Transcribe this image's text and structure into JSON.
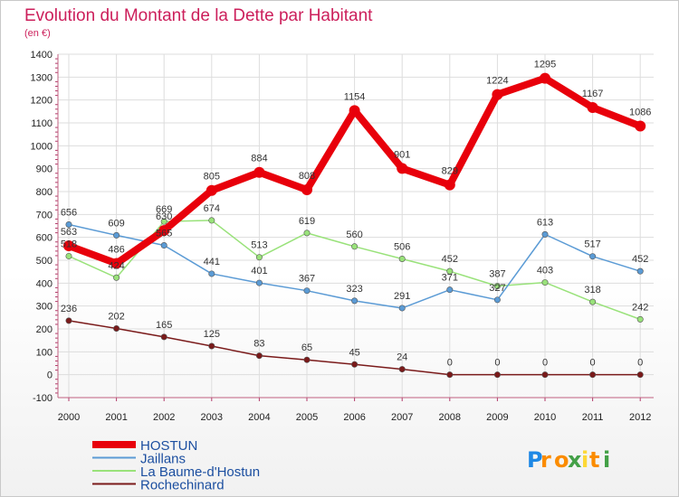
{
  "chart_data": {
    "type": "line",
    "title": "Evolution du Montant de la Dette par Habitant",
    "subtitle": "(en €)",
    "xlabel": "",
    "ylabel": "",
    "x": [
      "2000",
      "2001",
      "2002",
      "2003",
      "2004",
      "2005",
      "2006",
      "2007",
      "2008",
      "2009",
      "2010",
      "2011",
      "2012"
    ],
    "ylim": [
      -100,
      1400
    ],
    "yticks": [
      -100,
      0,
      100,
      200,
      300,
      400,
      500,
      600,
      700,
      800,
      900,
      1000,
      1100,
      1200,
      1300,
      1400
    ],
    "grid": true,
    "legend_position": "bottom-left",
    "series": [
      {
        "name": "HOSTUN",
        "color": "#e8000b",
        "values": [
          563,
          486,
          630,
          805,
          884,
          808,
          1154,
          901,
          829,
          1224,
          1295,
          1167,
          1086
        ],
        "labels": [
          "563",
          "486",
          "630",
          "805",
          "884",
          "808",
          "1154",
          "901",
          "829",
          "1224",
          "1295",
          "1167",
          "1086"
        ]
      },
      {
        "name": "Jaillans",
        "color": "#5b9bd5",
        "values": [
          656,
          609,
          565,
          441,
          401,
          367,
          323,
          291,
          371,
          327,
          613,
          517,
          452
        ],
        "labels": [
          "656",
          "609",
          "565",
          "441",
          "401",
          "367",
          "323",
          "291",
          "371",
          "327",
          "613",
          "517",
          "452"
        ]
      },
      {
        "name": "La Baume-d'Hostun",
        "color": "#99e27a",
        "values": [
          518,
          424,
          669,
          674,
          513,
          619,
          560,
          506,
          452,
          387,
          403,
          318,
          242
        ],
        "labels": [
          "518",
          "424",
          "669",
          "674",
          "513",
          "619",
          "560",
          "506",
          "452",
          "387",
          "403",
          "318",
          "242"
        ]
      },
      {
        "name": "Rochechinard",
        "color": "#7a1a1a",
        "values": [
          236,
          202,
          165,
          125,
          83,
          65,
          45,
          24,
          0,
          0,
          0,
          0,
          0
        ],
        "labels": [
          "236",
          "202",
          "165",
          "125",
          "83",
          "65",
          "45",
          "24",
          "0",
          "0",
          "0",
          "0",
          "0"
        ]
      }
    ]
  },
  "logo": {
    "text": "Proxiti",
    "letters": [
      "P",
      "r",
      "o",
      "x",
      "i",
      "t",
      "i"
    ],
    "colors": [
      "#1e88e5",
      "#fb8c00",
      "#fb8c00",
      "#43a047",
      "#fdd835",
      "#fb8c00",
      "#43a047"
    ]
  }
}
